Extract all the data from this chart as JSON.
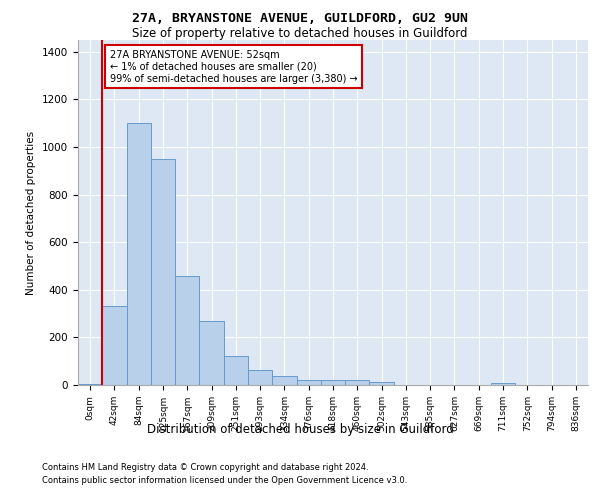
{
  "title1": "27A, BRYANSTONE AVENUE, GUILDFORD, GU2 9UN",
  "title2": "Size of property relative to detached houses in Guildford",
  "chart_xlabel": "Distribution of detached houses by size in Guildford",
  "ylabel": "Number of detached properties",
  "footnote1": "Contains HM Land Registry data © Crown copyright and database right 2024.",
  "footnote2": "Contains public sector information licensed under the Open Government Licence v3.0.",
  "annotation_line1": "27A BRYANSTONE AVENUE: 52sqm",
  "annotation_line2": "← 1% of detached houses are smaller (20)",
  "annotation_line3": "99% of semi-detached houses are larger (3,380) →",
  "bar_color": "#b8d0ea",
  "bar_edge_color": "#6699cc",
  "red_line_color": "#cc0000",
  "annotation_box_color": "#cc0000",
  "background_color": "#dde8f4",
  "bins": [
    "0sqm",
    "42sqm",
    "84sqm",
    "125sqm",
    "167sqm",
    "209sqm",
    "251sqm",
    "293sqm",
    "334sqm",
    "376sqm",
    "418sqm",
    "460sqm",
    "502sqm",
    "543sqm",
    "585sqm",
    "627sqm",
    "669sqm",
    "711sqm",
    "752sqm",
    "794sqm",
    "836sqm"
  ],
  "values": [
    5,
    330,
    1100,
    950,
    460,
    270,
    120,
    65,
    38,
    20,
    20,
    20,
    12,
    0,
    0,
    0,
    0,
    10,
    0,
    0,
    0
  ],
  "red_line_x": 1,
  "ylim": [
    0,
    1450
  ],
  "yticks": [
    0,
    200,
    400,
    600,
    800,
    1000,
    1200,
    1400
  ]
}
